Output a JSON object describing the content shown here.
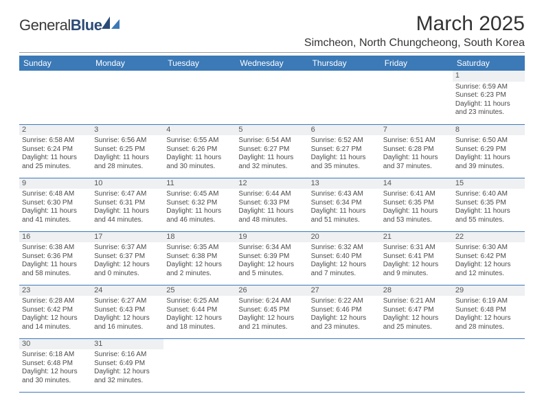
{
  "logo": {
    "text1": "General",
    "text2": "Blue"
  },
  "title": "March 2025",
  "location": "Simcheon, North Chungcheong, South Korea",
  "colors": {
    "header_bg": "#3b79b7",
    "header_fg": "#ffffff",
    "rule": "#3b79b7",
    "daynum_bg": "#eef0f2"
  },
  "weekdays": [
    "Sunday",
    "Monday",
    "Tuesday",
    "Wednesday",
    "Thursday",
    "Friday",
    "Saturday"
  ],
  "weeks": [
    [
      {
        "blank": true
      },
      {
        "blank": true
      },
      {
        "blank": true
      },
      {
        "blank": true
      },
      {
        "blank": true
      },
      {
        "blank": true
      },
      {
        "d": "1",
        "sr": "Sunrise: 6:59 AM",
        "ss": "Sunset: 6:23 PM",
        "dl1": "Daylight: 11 hours",
        "dl2": "and 23 minutes."
      }
    ],
    [
      {
        "d": "2",
        "sr": "Sunrise: 6:58 AM",
        "ss": "Sunset: 6:24 PM",
        "dl1": "Daylight: 11 hours",
        "dl2": "and 25 minutes."
      },
      {
        "d": "3",
        "sr": "Sunrise: 6:56 AM",
        "ss": "Sunset: 6:25 PM",
        "dl1": "Daylight: 11 hours",
        "dl2": "and 28 minutes."
      },
      {
        "d": "4",
        "sr": "Sunrise: 6:55 AM",
        "ss": "Sunset: 6:26 PM",
        "dl1": "Daylight: 11 hours",
        "dl2": "and 30 minutes."
      },
      {
        "d": "5",
        "sr": "Sunrise: 6:54 AM",
        "ss": "Sunset: 6:27 PM",
        "dl1": "Daylight: 11 hours",
        "dl2": "and 32 minutes."
      },
      {
        "d": "6",
        "sr": "Sunrise: 6:52 AM",
        "ss": "Sunset: 6:27 PM",
        "dl1": "Daylight: 11 hours",
        "dl2": "and 35 minutes."
      },
      {
        "d": "7",
        "sr": "Sunrise: 6:51 AM",
        "ss": "Sunset: 6:28 PM",
        "dl1": "Daylight: 11 hours",
        "dl2": "and 37 minutes."
      },
      {
        "d": "8",
        "sr": "Sunrise: 6:50 AM",
        "ss": "Sunset: 6:29 PM",
        "dl1": "Daylight: 11 hours",
        "dl2": "and 39 minutes."
      }
    ],
    [
      {
        "d": "9",
        "sr": "Sunrise: 6:48 AM",
        "ss": "Sunset: 6:30 PM",
        "dl1": "Daylight: 11 hours",
        "dl2": "and 41 minutes."
      },
      {
        "d": "10",
        "sr": "Sunrise: 6:47 AM",
        "ss": "Sunset: 6:31 PM",
        "dl1": "Daylight: 11 hours",
        "dl2": "and 44 minutes."
      },
      {
        "d": "11",
        "sr": "Sunrise: 6:45 AM",
        "ss": "Sunset: 6:32 PM",
        "dl1": "Daylight: 11 hours",
        "dl2": "and 46 minutes."
      },
      {
        "d": "12",
        "sr": "Sunrise: 6:44 AM",
        "ss": "Sunset: 6:33 PM",
        "dl1": "Daylight: 11 hours",
        "dl2": "and 48 minutes."
      },
      {
        "d": "13",
        "sr": "Sunrise: 6:43 AM",
        "ss": "Sunset: 6:34 PM",
        "dl1": "Daylight: 11 hours",
        "dl2": "and 51 minutes."
      },
      {
        "d": "14",
        "sr": "Sunrise: 6:41 AM",
        "ss": "Sunset: 6:35 PM",
        "dl1": "Daylight: 11 hours",
        "dl2": "and 53 minutes."
      },
      {
        "d": "15",
        "sr": "Sunrise: 6:40 AM",
        "ss": "Sunset: 6:35 PM",
        "dl1": "Daylight: 11 hours",
        "dl2": "and 55 minutes."
      }
    ],
    [
      {
        "d": "16",
        "sr": "Sunrise: 6:38 AM",
        "ss": "Sunset: 6:36 PM",
        "dl1": "Daylight: 11 hours",
        "dl2": "and 58 minutes."
      },
      {
        "d": "17",
        "sr": "Sunrise: 6:37 AM",
        "ss": "Sunset: 6:37 PM",
        "dl1": "Daylight: 12 hours",
        "dl2": "and 0 minutes."
      },
      {
        "d": "18",
        "sr": "Sunrise: 6:35 AM",
        "ss": "Sunset: 6:38 PM",
        "dl1": "Daylight: 12 hours",
        "dl2": "and 2 minutes."
      },
      {
        "d": "19",
        "sr": "Sunrise: 6:34 AM",
        "ss": "Sunset: 6:39 PM",
        "dl1": "Daylight: 12 hours",
        "dl2": "and 5 minutes."
      },
      {
        "d": "20",
        "sr": "Sunrise: 6:32 AM",
        "ss": "Sunset: 6:40 PM",
        "dl1": "Daylight: 12 hours",
        "dl2": "and 7 minutes."
      },
      {
        "d": "21",
        "sr": "Sunrise: 6:31 AM",
        "ss": "Sunset: 6:41 PM",
        "dl1": "Daylight: 12 hours",
        "dl2": "and 9 minutes."
      },
      {
        "d": "22",
        "sr": "Sunrise: 6:30 AM",
        "ss": "Sunset: 6:42 PM",
        "dl1": "Daylight: 12 hours",
        "dl2": "and 12 minutes."
      }
    ],
    [
      {
        "d": "23",
        "sr": "Sunrise: 6:28 AM",
        "ss": "Sunset: 6:42 PM",
        "dl1": "Daylight: 12 hours",
        "dl2": "and 14 minutes."
      },
      {
        "d": "24",
        "sr": "Sunrise: 6:27 AM",
        "ss": "Sunset: 6:43 PM",
        "dl1": "Daylight: 12 hours",
        "dl2": "and 16 minutes."
      },
      {
        "d": "25",
        "sr": "Sunrise: 6:25 AM",
        "ss": "Sunset: 6:44 PM",
        "dl1": "Daylight: 12 hours",
        "dl2": "and 18 minutes."
      },
      {
        "d": "26",
        "sr": "Sunrise: 6:24 AM",
        "ss": "Sunset: 6:45 PM",
        "dl1": "Daylight: 12 hours",
        "dl2": "and 21 minutes."
      },
      {
        "d": "27",
        "sr": "Sunrise: 6:22 AM",
        "ss": "Sunset: 6:46 PM",
        "dl1": "Daylight: 12 hours",
        "dl2": "and 23 minutes."
      },
      {
        "d": "28",
        "sr": "Sunrise: 6:21 AM",
        "ss": "Sunset: 6:47 PM",
        "dl1": "Daylight: 12 hours",
        "dl2": "and 25 minutes."
      },
      {
        "d": "29",
        "sr": "Sunrise: 6:19 AM",
        "ss": "Sunset: 6:48 PM",
        "dl1": "Daylight: 12 hours",
        "dl2": "and 28 minutes."
      }
    ],
    [
      {
        "d": "30",
        "sr": "Sunrise: 6:18 AM",
        "ss": "Sunset: 6:48 PM",
        "dl1": "Daylight: 12 hours",
        "dl2": "and 30 minutes."
      },
      {
        "d": "31",
        "sr": "Sunrise: 6:16 AM",
        "ss": "Sunset: 6:49 PM",
        "dl1": "Daylight: 12 hours",
        "dl2": "and 32 minutes."
      },
      {
        "blank": true
      },
      {
        "blank": true
      },
      {
        "blank": true
      },
      {
        "blank": true
      },
      {
        "blank": true
      }
    ]
  ]
}
